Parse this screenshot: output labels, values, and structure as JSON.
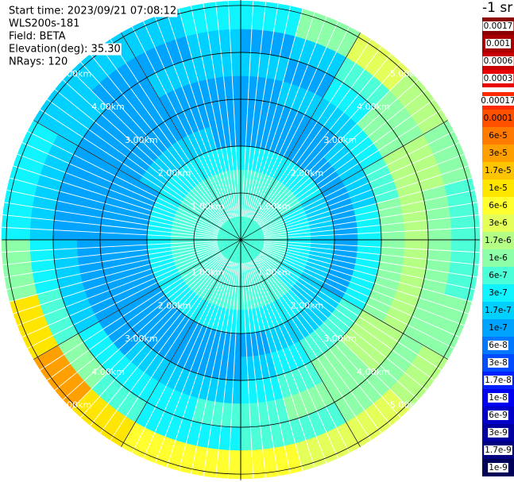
{
  "chart_data": {
    "type": "ppi",
    "header": [
      "Start time: 2023/09/21 07:08:12",
      "WLS200s-181",
      "Field: BETA",
      "Elevation(deg): 35.30",
      "NRays: 120"
    ],
    "colorbar_title": "-1 sr",
    "colorbar": [
      {
        "value": 0.0017,
        "label": "0.0017",
        "color": "#8b0000"
      },
      {
        "value": 0.001,
        "label": "0.001",
        "color": "#a80000"
      },
      {
        "value": 0.0006,
        "label": "0.0006",
        "color": "#c80000"
      },
      {
        "value": 0.0003,
        "label": "0.0003",
        "color": "#e80000"
      },
      {
        "value": 0.00017,
        "label": "0.00017",
        "color": "#ff2a00"
      },
      {
        "value": 0.0001,
        "label": "0.0001",
        "color": "#ff5000"
      },
      {
        "value": 6e-05,
        "label": "6e-5",
        "color": "#ff7a00"
      },
      {
        "value": 3e-05,
        "label": "3e-5",
        "color": "#ffa000"
      },
      {
        "value": 1.7e-05,
        "label": "1.7e-5",
        "color": "#ffc400"
      },
      {
        "value": 1e-05,
        "label": "1e-5",
        "color": "#ffe600"
      },
      {
        "value": 6e-06,
        "label": "6e-6",
        "color": "#ffff30"
      },
      {
        "value": 3e-06,
        "label": "3e-6",
        "color": "#e4ff5a"
      },
      {
        "value": 1.7e-06,
        "label": "1.7e-6",
        "color": "#b4ff84"
      },
      {
        "value": 1e-06,
        "label": "1e-6",
        "color": "#8cffa8"
      },
      {
        "value": 6e-07,
        "label": "6e-7",
        "color": "#4cffd8"
      },
      {
        "value": 3e-07,
        "label": "3e-7",
        "color": "#10f4ff"
      },
      {
        "value": 1.7e-07,
        "label": "1.7e-7",
        "color": "#00d0ff"
      },
      {
        "value": 1e-07,
        "label": "1e-7",
        "color": "#00a4ff"
      },
      {
        "value": 6e-08,
        "label": "6e-8",
        "color": "#0078ff"
      },
      {
        "value": 3e-08,
        "label": "3e-8",
        "color": "#004cff"
      },
      {
        "value": 1.7e-08,
        "label": "1.7e-8",
        "color": "#0020ff"
      },
      {
        "value": 1e-08,
        "label": "1e-8",
        "color": "#0000f0"
      },
      {
        "value": 6e-09,
        "label": "6e-9",
        "color": "#0000c8"
      },
      {
        "value": 3e-09,
        "label": "3e-9",
        "color": "#0000a0"
      },
      {
        "value": 1.7e-09,
        "label": "1.7e-9",
        "color": "#000080"
      },
      {
        "value": 1e-09,
        "label": "1e-9",
        "color": "#000058"
      }
    ],
    "rlim": [
      0,
      5.1
    ],
    "rticks": [
      {
        "value": 1,
        "label": "1.00km"
      },
      {
        "value": 2,
        "label": "2.00km"
      },
      {
        "value": 3,
        "label": "3.00km"
      },
      {
        "value": 4,
        "label": "4.00km"
      },
      {
        "value": 5,
        "label": "5.00km"
      }
    ],
    "gate_edges": [
      0,
      0.5,
      1,
      1.5,
      2,
      2.5,
      3,
      3.5,
      4,
      4.5,
      5.1
    ],
    "azimuths": [
      0,
      15,
      30,
      45,
      60,
      75,
      90,
      105,
      120,
      135,
      150,
      165,
      180,
      195,
      210,
      225,
      240,
      255,
      270,
      285,
      300,
      315,
      330,
      345
    ],
    "values": [
      [
        6e-07,
        6e-07,
        6e-07,
        3e-07,
        1e-07,
        1e-07,
        1e-07,
        1.7e-07,
        1e-07,
        3e-07
      ],
      [
        6e-07,
        6e-07,
        6e-07,
        3e-07,
        1e-07,
        1e-07,
        1.7e-07,
        1e-07,
        1.7e-07,
        1e-06
      ],
      [
        6e-07,
        6e-07,
        6e-07,
        3e-07,
        1e-07,
        1e-07,
        1.7e-07,
        3e-07,
        6e-07,
        3e-06
      ],
      [
        6e-07,
        6e-07,
        6e-07,
        3e-07,
        1e-07,
        1.7e-07,
        3e-07,
        1e-06,
        1e-06,
        1.7e-06
      ],
      [
        6e-07,
        6e-07,
        3e-07,
        1.7e-07,
        1e-07,
        1.7e-07,
        6e-07,
        1.7e-06,
        1.7e-06,
        1e-06
      ],
      [
        6e-07,
        6e-07,
        3e-07,
        1.7e-07,
        1e-07,
        3e-07,
        1e-06,
        1.7e-06,
        1e-06,
        6e-07
      ],
      [
        6e-07,
        6e-07,
        3e-07,
        1.7e-07,
        1e-07,
        3e-07,
        1e-06,
        1.7e-06,
        1e-06,
        6e-07
      ],
      [
        6e-07,
        6e-07,
        3e-07,
        1.7e-07,
        1e-07,
        3e-07,
        1e-06,
        1.7e-06,
        1e-06,
        1e-06
      ],
      [
        6e-07,
        6e-07,
        3e-07,
        1.7e-07,
        1.7e-07,
        6e-07,
        1.7e-06,
        1.7e-06,
        1e-06,
        1.7e-06
      ],
      [
        6e-07,
        6e-07,
        6e-07,
        3e-07,
        1.7e-07,
        6e-07,
        1e-06,
        1e-06,
        1e-06,
        3e-06
      ],
      [
        6e-07,
        6e-07,
        6e-07,
        3e-07,
        1.7e-07,
        3e-07,
        6e-07,
        1e-06,
        6e-07,
        3e-06
      ],
      [
        6e-07,
        6e-07,
        6e-07,
        3e-07,
        1e-07,
        1.7e-07,
        3e-07,
        6e-07,
        6e-07,
        6e-06
      ],
      [
        6e-07,
        6e-07,
        6e-07,
        3e-07,
        1e-07,
        1e-07,
        1.7e-07,
        6e-07,
        3e-07,
        6e-06
      ],
      [
        6e-07,
        6e-07,
        6e-07,
        3e-07,
        1e-07,
        1e-07,
        1.7e-07,
        3e-07,
        3e-07,
        6e-06
      ],
      [
        6e-07,
        6e-07,
        6e-07,
        3e-07,
        1e-07,
        1e-07,
        1.7e-07,
        3e-07,
        6e-07,
        1e-05
      ],
      [
        6e-07,
        6e-07,
        6e-07,
        3e-07,
        1e-07,
        1e-07,
        1e-07,
        3e-07,
        1e-06,
        3e-05
      ],
      [
        6e-07,
        6e-07,
        6e-07,
        3e-07,
        1e-07,
        1e-07,
        1e-07,
        1.7e-07,
        6e-07,
        1e-05
      ],
      [
        6e-07,
        6e-07,
        6e-07,
        3e-07,
        1e-07,
        1e-07,
        1e-07,
        1.7e-07,
        3e-07,
        1e-06
      ],
      [
        6e-07,
        6e-07,
        6e-07,
        3e-07,
        1e-07,
        1e-07,
        1e-07,
        1e-07,
        1.7e-07,
        3e-07
      ],
      [
        6e-07,
        6e-07,
        6e-07,
        3e-07,
        1e-07,
        1e-07,
        1e-07,
        1e-07,
        1.7e-07,
        3e-07
      ],
      [
        6e-07,
        6e-07,
        6e-07,
        3e-07,
        1.7e-07,
        1e-07,
        1e-07,
        1e-07,
        1.7e-07,
        1.7e-07
      ],
      [
        6e-07,
        6e-07,
        6e-07,
        3e-07,
        1.7e-07,
        1e-07,
        1e-07,
        1e-07,
        1e-07,
        1.7e-07
      ],
      [
        6e-07,
        6e-07,
        6e-07,
        3e-07,
        1.7e-07,
        1e-07,
        1e-07,
        1.7e-07,
        1e-07,
        1.7e-07
      ],
      [
        6e-07,
        6e-07,
        6e-07,
        3e-07,
        1e-07,
        1e-07,
        1e-07,
        1.7e-07,
        1.7e-07,
        3e-07
      ]
    ]
  }
}
